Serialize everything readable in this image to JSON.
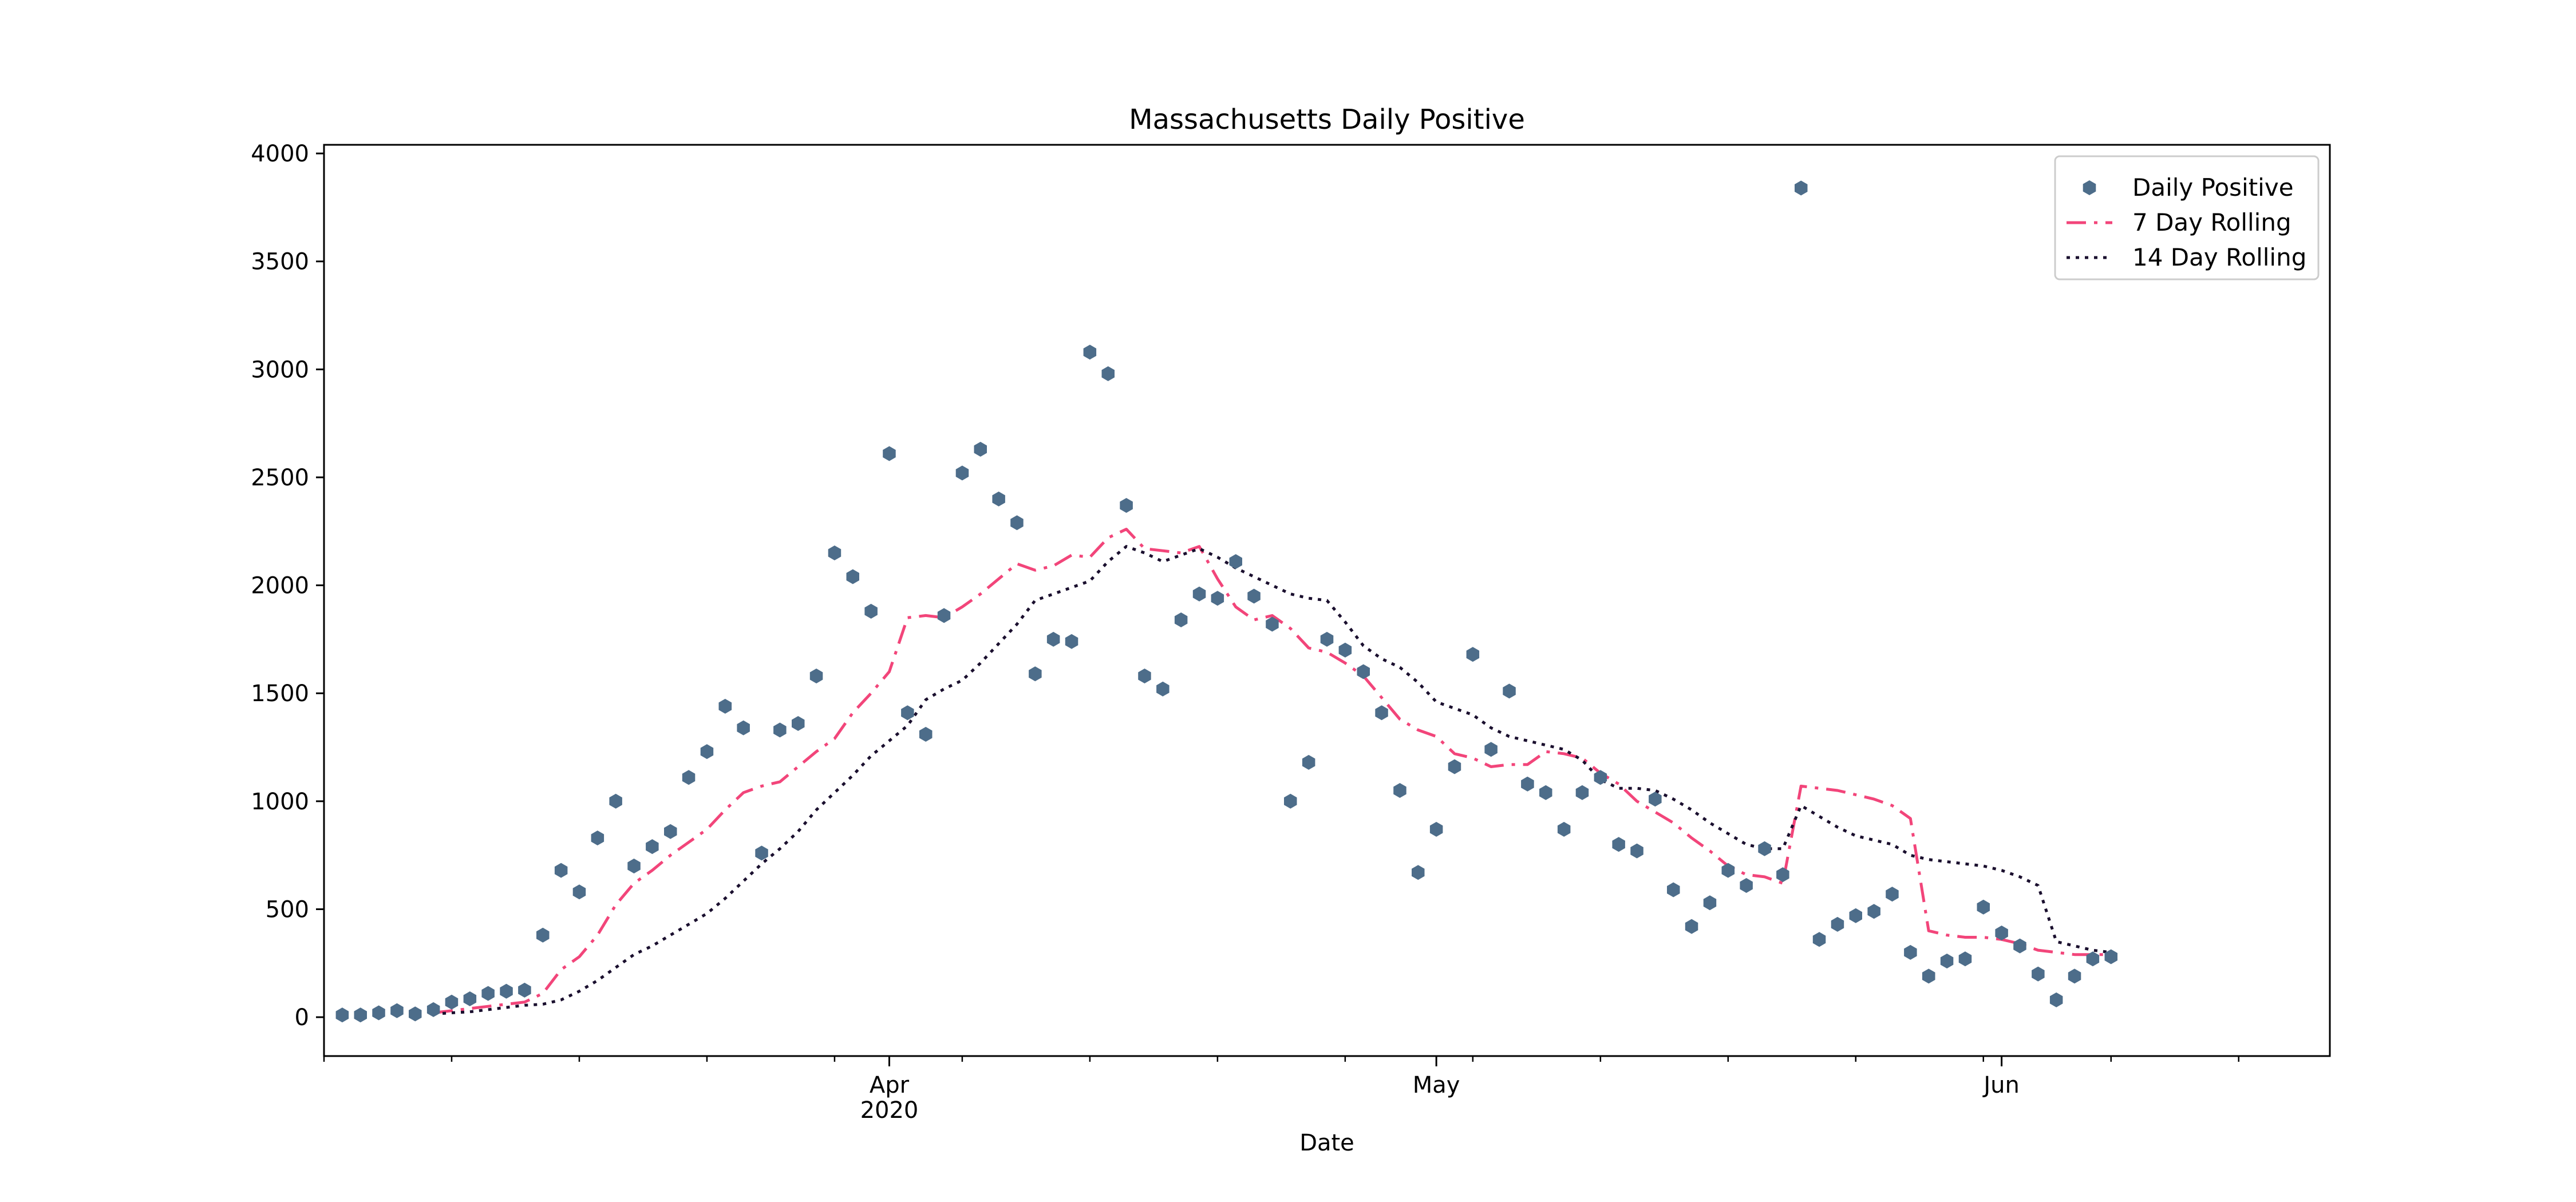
{
  "chart_data": {
    "type": "line",
    "title": "Massachusetts Daily Positive",
    "xlabel": "Date",
    "ylabel": "",
    "x_start": "2020-03-02",
    "x_end": "2020-06-19",
    "xlim": [
      "2020-03-01",
      "2020-06-19"
    ],
    "ylim": [
      -180,
      4040
    ],
    "x_major_ticks": [
      {
        "date": "2020-04-01",
        "label": "Apr",
        "sublabel": "2020"
      },
      {
        "date": "2020-05-01",
        "label": "May",
        "sublabel": ""
      },
      {
        "date": "2020-06-01",
        "label": "Jun",
        "sublabel": ""
      }
    ],
    "y_ticks": [
      0,
      500,
      1000,
      1500,
      2000,
      2500,
      3000,
      3500,
      4000
    ],
    "y_tick_labels": [
      "0",
      "500",
      "1000",
      "1500",
      "2000",
      "2500",
      "3000",
      "3500",
      "4000"
    ],
    "legend_position": "upper right",
    "series": [
      {
        "name": "Daily Positive",
        "style": "scatter",
        "color": "#4d6d8a",
        "values": [
          10,
          10,
          20,
          30,
          15,
          35,
          70,
          85,
          110,
          120,
          125,
          380,
          680,
          580,
          830,
          1000,
          700,
          790,
          860,
          1110,
          1230,
          1440,
          1340,
          760,
          1330,
          1360,
          1580,
          2150,
          2040,
          1880,
          2610,
          1410,
          1310,
          1860,
          2520,
          2630,
          2400,
          2290,
          1590,
          1750,
          1740,
          3080,
          2980,
          2370,
          1580,
          1520,
          1840,
          1960,
          1940,
          2110,
          1950,
          1820,
          1000,
          1180,
          1750,
          1700,
          1600,
          1410,
          1050,
          670,
          870,
          1160,
          1680,
          1240,
          1510,
          1080,
          1040,
          870,
          1040,
          1110,
          800,
          770,
          1010,
          590,
          420,
          530,
          680,
          610,
          780,
          660,
          3840,
          360,
          430,
          470,
          490,
          570,
          300,
          190,
          260,
          270,
          510,
          390,
          330,
          200,
          80,
          190,
          270,
          280
        ]
      },
      {
        "name": "7 Day Rolling",
        "style": "dashdot",
        "color": "#f2457a",
        "values": [
          null,
          null,
          null,
          null,
          null,
          20,
          30,
          40,
          50,
          60,
          70,
          110,
          220,
          280,
          380,
          520,
          620,
          680,
          750,
          810,
          870,
          960,
          1040,
          1070,
          1090,
          1160,
          1230,
          1290,
          1410,
          1500,
          1600,
          1850,
          1860,
          1850,
          1900,
          1960,
          2030,
          2100,
          2070,
          2090,
          2140,
          2130,
          2220,
          2260,
          2170,
          2160,
          2150,
          2180,
          2030,
          1900,
          1840,
          1860,
          1800,
          1710,
          1690,
          1640,
          1580,
          1480,
          1380,
          1330,
          1300,
          1220,
          1200,
          1160,
          1170,
          1170,
          1230,
          1220,
          1200,
          1130,
          1080,
          1000,
          950,
          900,
          830,
          770,
          700,
          660,
          650,
          620,
          1070,
          1060,
          1050,
          1030,
          1010,
          980,
          920,
          400,
          380,
          370,
          370,
          360,
          340,
          310,
          300,
          290,
          290,
          290
        ]
      },
      {
        "name": "14 Day Rolling",
        "style": "dotted",
        "color": "#1a0f2e",
        "values": [
          null,
          null,
          null,
          null,
          null,
          15,
          20,
          25,
          35,
          45,
          55,
          60,
          80,
          120,
          170,
          230,
          290,
          330,
          380,
          430,
          480,
          550,
          630,
          710,
          780,
          860,
          960,
          1040,
          1120,
          1210,
          1280,
          1350,
          1470,
          1520,
          1560,
          1640,
          1730,
          1820,
          1930,
          1960,
          1990,
          2020,
          2110,
          2180,
          2150,
          2110,
          2140,
          2170,
          2130,
          2080,
          2040,
          2000,
          1960,
          1940,
          1930,
          1830,
          1720,
          1660,
          1620,
          1550,
          1460,
          1430,
          1400,
          1340,
          1300,
          1280,
          1260,
          1240,
          1190,
          1100,
          1060,
          1060,
          1050,
          1010,
          960,
          900,
          850,
          800,
          780,
          780,
          980,
          930,
          880,
          840,
          820,
          800,
          750,
          730,
          720,
          710,
          700,
          680,
          650,
          610,
          350,
          330,
          310,
          300
        ]
      }
    ]
  }
}
